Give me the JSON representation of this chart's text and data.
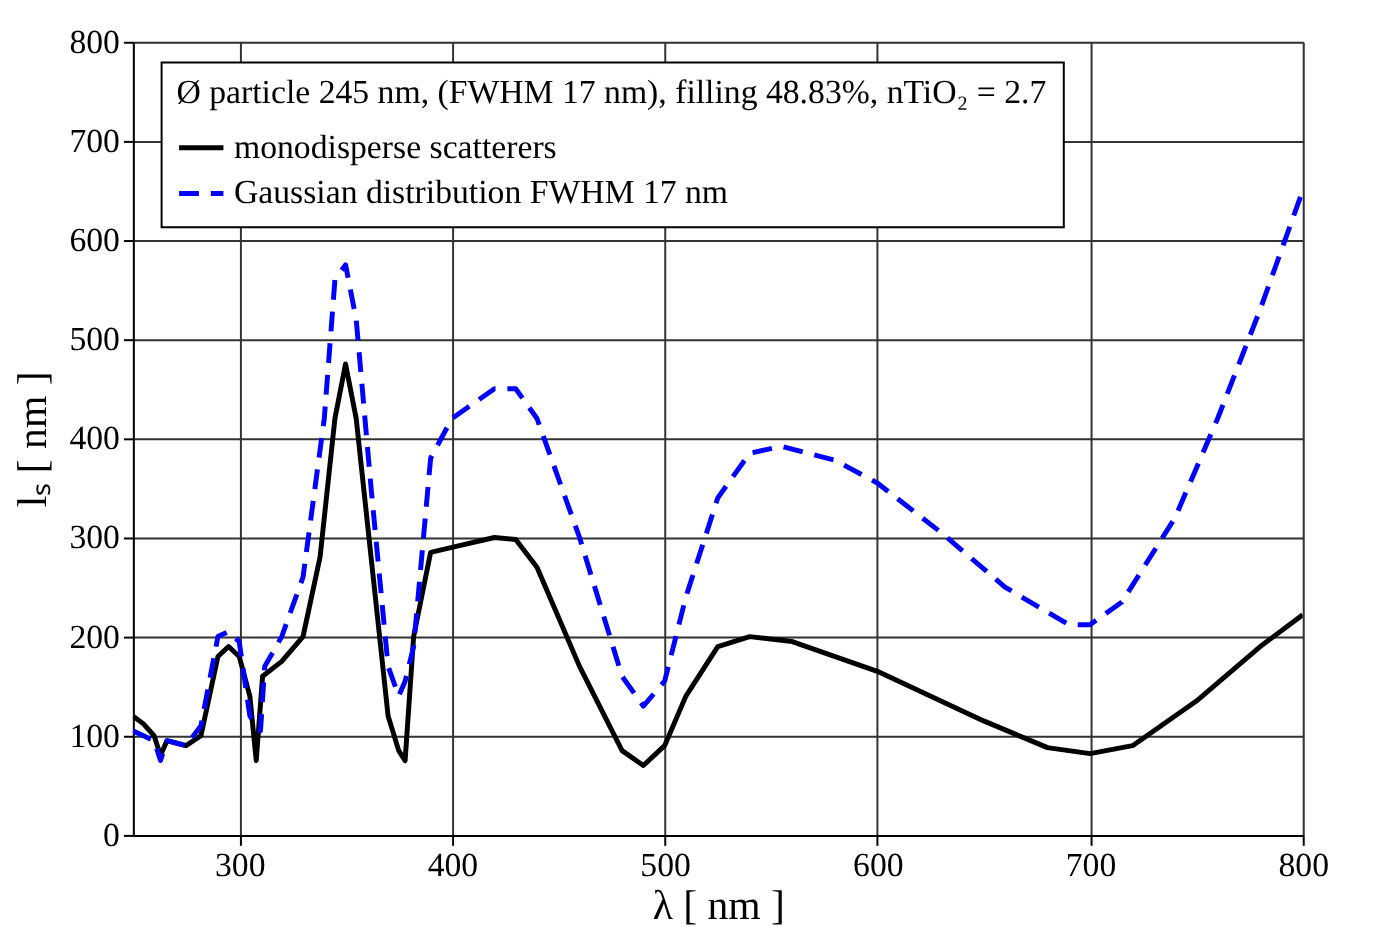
{
  "chart_data": {
    "type": "line",
    "xlabel": "λ   [ nm ]",
    "ylabel": "lₛ  [ nm ]",
    "legend_title": "Ø particle 245 nm, (FWHM 17 nm), filling 48.83%, nTiO₂ = 2.7",
    "legend": "top",
    "grid": true,
    "marker": "none",
    "xlim": [
      250,
      800
    ],
    "xticks": [
      300,
      400,
      500,
      600,
      700,
      800
    ],
    "ylim": [
      0,
      800
    ],
    "yticks": [
      0,
      100,
      200,
      300,
      400,
      500,
      600,
      700,
      800
    ],
    "series": [
      {
        "name": "monodisperse scatterers",
        "color": "#000000",
        "line_style": "solid",
        "x": [
          250,
          255,
          260,
          263,
          266,
          275,
          282,
          290,
          295,
          300,
          305,
          308,
          311,
          320,
          330,
          338,
          345,
          350,
          355,
          362,
          370,
          375,
          378,
          382,
          390,
          400,
          420,
          430,
          440,
          460,
          480,
          490,
          500,
          510,
          525,
          540,
          560,
          600,
          650,
          680,
          700,
          720,
          750,
          780,
          800
        ],
        "values": [
          120,
          112,
          100,
          80,
          95,
          90,
          100,
          180,
          190,
          180,
          140,
          75,
          160,
          175,
          200,
          280,
          420,
          475,
          420,
          280,
          120,
          85,
          75,
          200,
          285,
          290,
          300,
          298,
          270,
          170,
          85,
          70,
          90,
          140,
          190,
          200,
          195,
          165,
          115,
          88,
          82,
          90,
          135,
          190,
          222
        ]
      },
      {
        "name": "Gaussian distribution FWHM 17 nm",
        "color": "#0000ff",
        "line_style": "dashed",
        "x": [
          250,
          255,
          260,
          263,
          266,
          275,
          282,
          290,
          295,
          300,
          305,
          310,
          312,
          320,
          330,
          340,
          345,
          350,
          355,
          362,
          370,
          375,
          378,
          382,
          390,
          400,
          420,
          430,
          440,
          460,
          480,
          490,
          500,
          510,
          525,
          540,
          555,
          580,
          600,
          630,
          660,
          690,
          700,
          715,
          740,
          760,
          780,
          800
        ],
        "values": [
          105,
          100,
          95,
          75,
          95,
          90,
          110,
          200,
          205,
          195,
          120,
          105,
          170,
          200,
          260,
          420,
          560,
          575,
          520,
          350,
          170,
          140,
          155,
          190,
          380,
          420,
          450,
          450,
          420,
          300,
          160,
          130,
          155,
          240,
          340,
          385,
          392,
          378,
          355,
          305,
          250,
          212,
          212,
          235,
          320,
          420,
          530,
          650
        ]
      }
    ]
  }
}
